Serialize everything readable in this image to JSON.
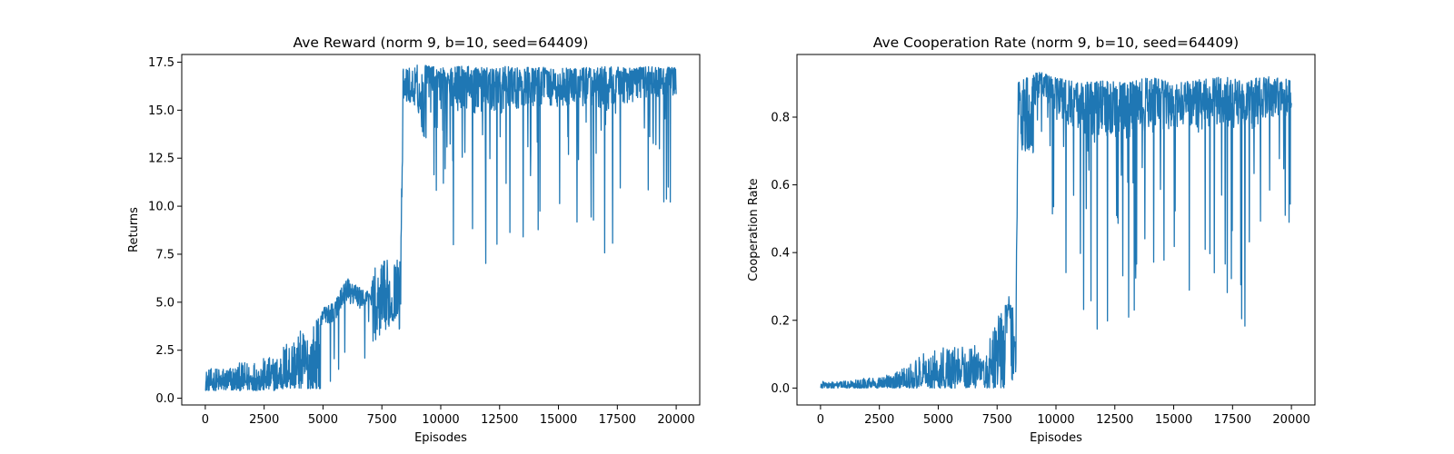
{
  "chart_data": [
    {
      "type": "line",
      "title": "Ave Reward (norm 9, b=10, seed=64409)",
      "xlabel": "Episodes",
      "ylabel": "Returns",
      "xlim": [
        -1000,
        21000
      ],
      "ylim": [
        -0.35,
        17.9
      ],
      "xticks": [
        0,
        2500,
        5000,
        7500,
        10000,
        12500,
        15000,
        17500,
        20000
      ],
      "xtick_labels": [
        "0",
        "2500",
        "5000",
        "7500",
        "10000",
        "12500",
        "15000",
        "17500",
        "20000"
      ],
      "yticks": [
        0,
        2.5,
        5,
        7.5,
        10,
        12.5,
        15,
        17.5
      ],
      "ytick_labels": [
        "0.0",
        "2.5",
        "5.0",
        "7.5",
        "10.0",
        "12.5",
        "15.0",
        "17.5"
      ],
      "grid": false,
      "series": [
        {
          "color": "#1f77b4",
          "x": [
            0,
            1000,
            2000,
            3000,
            3500,
            4000,
            4500,
            5000,
            5500,
            6000,
            6500,
            7000,
            7200,
            7600,
            8000,
            8200,
            8300,
            8400,
            8500,
            9000,
            10000,
            11000,
            12000,
            13000,
            14000,
            15000,
            16000,
            17000,
            18000,
            19000,
            20000
          ],
          "y_low": [
            0.4,
            0.4,
            0.4,
            0.4,
            0.5,
            0.5,
            0.5,
            0.5,
            0.6,
            0.7,
            0.8,
            0.8,
            3.0,
            3.5,
            4.0,
            4.5,
            1.8,
            15.5,
            15.5,
            15.2,
            9.3,
            5.9,
            6.0,
            6.5,
            8.2,
            7.5,
            8.0,
            6.4,
            9.0,
            10.0,
            10.2
          ],
          "y_high": [
            1.5,
            1.7,
            2.0,
            2.2,
            3.2,
            3.5,
            3.8,
            4.7,
            5.0,
            6.3,
            5.8,
            5.5,
            6.8,
            7.2,
            7.5,
            7.2,
            7.3,
            17.2,
            17.3,
            17.4,
            17.2,
            17.3,
            17.2,
            17.3,
            17.2,
            17.3,
            17.2,
            17.3,
            17.2,
            17.3,
            17.2
          ]
        }
      ]
    },
    {
      "type": "line",
      "title": "Ave Cooperation Rate (norm 9, b=10, seed=64409)",
      "xlabel": "Episodes",
      "ylabel": "Cooperation Rate",
      "xlim": [
        -1000,
        21000
      ],
      "ylim": [
        -0.05,
        0.985
      ],
      "xticks": [
        0,
        2500,
        5000,
        7500,
        10000,
        12500,
        15000,
        17500,
        20000
      ],
      "xtick_labels": [
        "0",
        "2500",
        "5000",
        "7500",
        "10000",
        "12500",
        "15000",
        "17500",
        "20000"
      ],
      "yticks": [
        0,
        0.2,
        0.4,
        0.6,
        0.8
      ],
      "ytick_labels": [
        "0.0",
        "0.2",
        "0.4",
        "0.6",
        "0.8"
      ],
      "grid": false,
      "series": [
        {
          "color": "#1f77b4",
          "x": [
            0,
            1000,
            2000,
            3000,
            3500,
            4000,
            4500,
            5000,
            5500,
            6000,
            6500,
            7000,
            7200,
            7600,
            8000,
            8200,
            8300,
            8400,
            8500,
            9000,
            10000,
            11000,
            12000,
            13000,
            14000,
            15000,
            16000,
            17000,
            18000,
            19000,
            20000
          ],
          "y_low": [
            0.0,
            0.0,
            0.0,
            0.0,
            0.0,
            0.0,
            0.0,
            0.0,
            0.0,
            0.0,
            0.0,
            0.0,
            0.0,
            0.0,
            0.0,
            0.02,
            0.05,
            0.35,
            0.7,
            0.7,
            0.45,
            0.17,
            0.17,
            0.14,
            0.17,
            0.28,
            0.19,
            0.3,
            0.14,
            0.38,
            0.43
          ],
          "y_high": [
            0.02,
            0.02,
            0.03,
            0.04,
            0.06,
            0.08,
            0.11,
            0.12,
            0.12,
            0.12,
            0.13,
            0.1,
            0.15,
            0.22,
            0.27,
            0.24,
            0.25,
            0.9,
            0.92,
            0.94,
            0.92,
            0.9,
            0.91,
            0.9,
            0.92,
            0.9,
            0.91,
            0.92,
            0.91,
            0.92,
            0.91
          ]
        }
      ]
    }
  ]
}
